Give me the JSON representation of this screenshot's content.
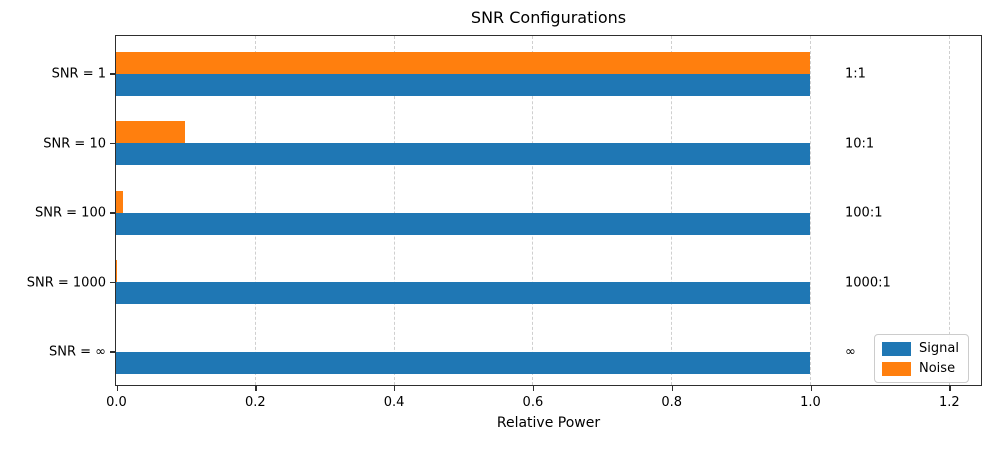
{
  "title": "SNR Configurations",
  "colors": {
    "signal": "#1f77b4",
    "noise": "#ff7f0e",
    "grid": "#cfcfcf",
    "spine": "#2e2e2e",
    "background": "#ffffff"
  },
  "chart_data": {
    "type": "bar",
    "orientation": "horizontal",
    "title": "SNR Configurations",
    "xlabel": "Relative Power",
    "ylabel": "",
    "categories": [
      "SNR = 1",
      "SNR = 10",
      "SNR = 100",
      "SNR = 1000",
      "SNR = ∞"
    ],
    "series": [
      {
        "name": "Signal",
        "color": "#1f77b4",
        "values": [
          1.0,
          1.0,
          1.0,
          1.0,
          1.0
        ]
      },
      {
        "name": "Noise",
        "color": "#ff7f0e",
        "values": [
          1.0,
          0.1,
          0.01,
          0.001,
          0.0
        ]
      }
    ],
    "annotations": [
      "1:1",
      "10:1",
      "100:1",
      "1000:1",
      "∞"
    ],
    "x_ticks": [
      "0.0",
      "0.2",
      "0.4",
      "0.6",
      "0.8",
      "1.0",
      "1.2"
    ],
    "x_tick_values": [
      0.0,
      0.2,
      0.4,
      0.6,
      0.8,
      1.0,
      1.2
    ],
    "xlim": [
      0.0,
      1.25
    ],
    "grid": true,
    "grid_style": "dashed-vertical",
    "legend": {
      "position": "lower right",
      "entries": [
        "Signal",
        "Noise"
      ]
    }
  }
}
